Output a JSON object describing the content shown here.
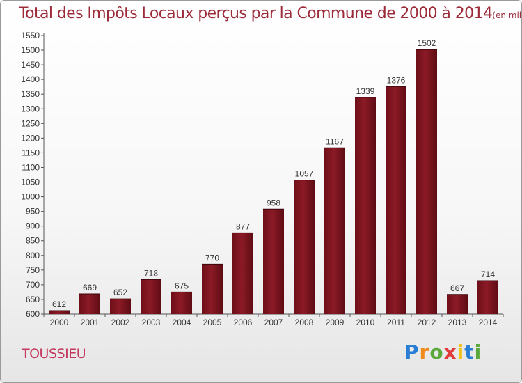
{
  "chart_data": {
    "type": "bar",
    "title": "Total des Impôts Locaux perçus par la Commune de 2000 à 2014",
    "title_unit": "(en milliers d'€)",
    "categories": [
      "2000",
      "2001",
      "2002",
      "2003",
      "2004",
      "2005",
      "2006",
      "2007",
      "2008",
      "2009",
      "2010",
      "2011",
      "2012",
      "2013",
      "2014"
    ],
    "values": [
      612,
      669,
      652,
      718,
      675,
      770,
      877,
      958,
      1057,
      1167,
      1339,
      1376,
      1502,
      667,
      714
    ],
    "ylim": [
      600,
      1550
    ],
    "yticks": [
      600,
      650,
      700,
      750,
      800,
      850,
      900,
      950,
      1000,
      1050,
      1100,
      1150,
      1200,
      1250,
      1300,
      1350,
      1400,
      1450,
      1500,
      1550
    ],
    "grid": false,
    "bar_color": "#8b1a26"
  },
  "commune": "TOUSSIEU",
  "logo": {
    "letters": [
      "P",
      "r",
      "o",
      "x",
      "i",
      "t",
      "i"
    ],
    "colors": [
      "#2a7fd4",
      "#f08a1c",
      "#5aa83a",
      "#e23b3b",
      "#f2c21b",
      "#2a7fd4",
      "#5aa83a"
    ]
  }
}
